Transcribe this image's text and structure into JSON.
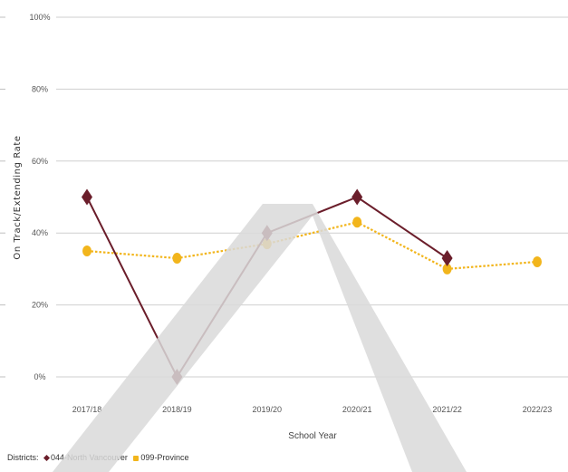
{
  "chart_data": {
    "type": "line",
    "title": "",
    "xlabel": "School Year",
    "ylabel": "On Track/Extending Rate",
    "categories": [
      "2017/18",
      "2018/19",
      "2019/20",
      "2020/21",
      "2021/22",
      "2022/23"
    ],
    "y_ticks": [
      "100%",
      "80%",
      "60%",
      "40%",
      "20%",
      "0%"
    ],
    "ylim": [
      0,
      100
    ],
    "grid": true,
    "series": [
      {
        "name": "044-North Vancouver",
        "values": [
          50,
          0,
          40,
          50,
          33,
          null
        ],
        "color": "#6b1e2b",
        "marker": "diamond",
        "line": "solid"
      },
      {
        "name": "099-Province",
        "values": [
          35,
          33,
          37,
          43,
          30,
          32
        ],
        "color": "#f2b51c",
        "marker": "circle",
        "line": "dotted"
      }
    ],
    "legend": {
      "prefix": "Districts:",
      "position": "bottom-left"
    }
  }
}
